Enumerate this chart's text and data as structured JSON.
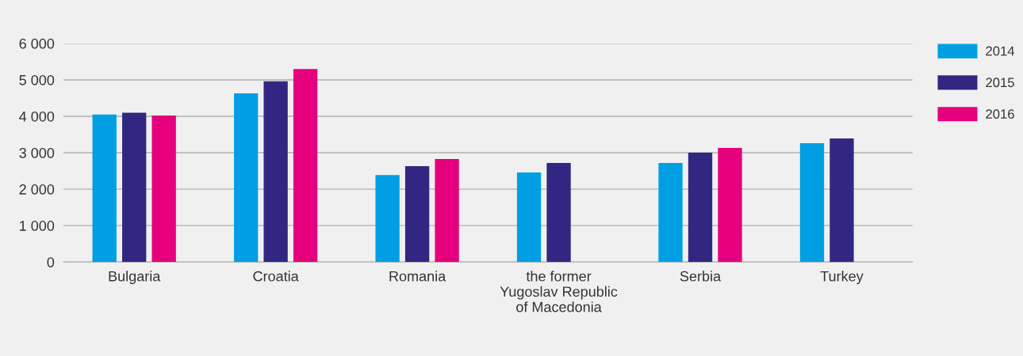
{
  "chart_data": {
    "type": "bar",
    "categories": [
      "Bulgaria",
      "Croatia",
      "Romania",
      "the former\nYugoslav Republic\nof Macedonia",
      "Serbia",
      "Turkey"
    ],
    "series": [
      {
        "name": "2014",
        "color": "#009fe3",
        "values": [
          4050,
          4630,
          2390,
          2460,
          2720,
          3260
        ]
      },
      {
        "name": "2015",
        "color": "#312783",
        "values": [
          4100,
          4960,
          2630,
          2720,
          3000,
          3390
        ]
      },
      {
        "name": "2016",
        "color": "#e6007e",
        "values": [
          4020,
          5300,
          2830,
          null,
          3130,
          null
        ]
      }
    ],
    "ylim": [
      0,
      6000
    ],
    "yticks": [
      0,
      {
        "value": 1000,
        "label": "1 000"
      },
      {
        "value": 2000,
        "label": "2 000"
      },
      {
        "value": 3000,
        "label": "3 000"
      },
      {
        "value": 4000,
        "label": "4 000"
      },
      {
        "value": 5000,
        "label": "5 000"
      },
      {
        "value": 6000,
        "label": "6 000"
      }
    ],
    "grid": "y",
    "legend": "top right"
  }
}
